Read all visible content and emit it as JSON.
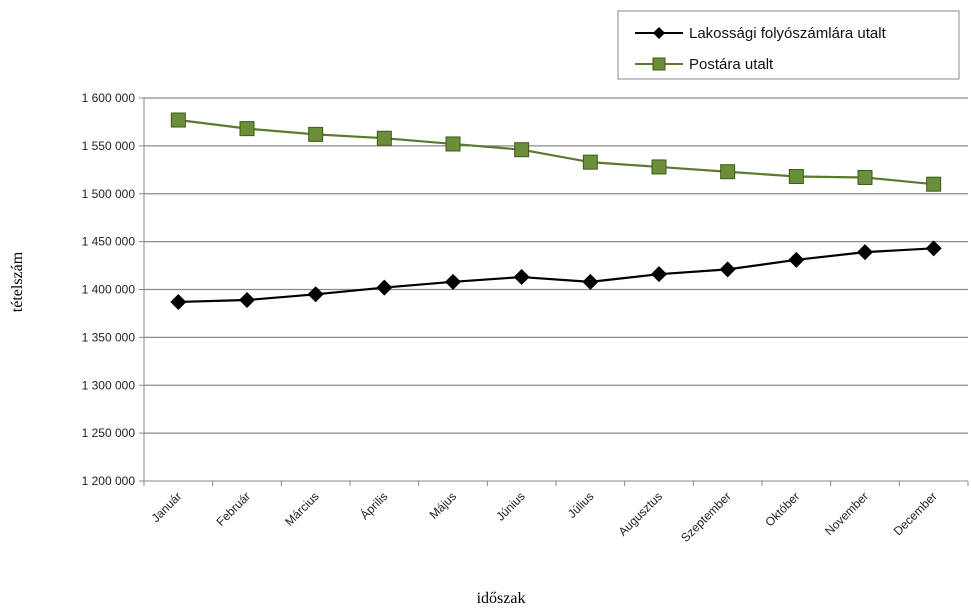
{
  "chart_data": {
    "type": "line",
    "title": "",
    "xlabel": "időszak",
    "ylabel": "tételszám",
    "categories": [
      "Január",
      "Február",
      "Március",
      "Április",
      "Május",
      "Június",
      "Július",
      "Augusztus",
      "Szeptember",
      "Október",
      "November",
      "December"
    ],
    "y_ticks": [
      "1 200 000",
      "1 250 000",
      "1 300 000",
      "1 350 000",
      "1 400 000",
      "1 450 000",
      "1 500 000",
      "1 550 000",
      "1 600 000"
    ],
    "ylim": [
      1200000,
      1600000
    ],
    "grid": "horizontal",
    "legend_position": "top-right",
    "series": [
      {
        "name": "Lakossági folyószámlára utalt",
        "marker": "diamond",
        "color": "#000000",
        "values": [
          1387000,
          1389000,
          1395000,
          1402000,
          1408000,
          1413000,
          1408000,
          1416000,
          1421000,
          1431000,
          1439000,
          1443000
        ]
      },
      {
        "name": "Postára utalt",
        "marker": "square",
        "color": "#5a7a2c",
        "values": [
          1577000,
          1568000,
          1562000,
          1558000,
          1552000,
          1546000,
          1533000,
          1528000,
          1523000,
          1518000,
          1517000,
          1510000
        ]
      }
    ]
  }
}
